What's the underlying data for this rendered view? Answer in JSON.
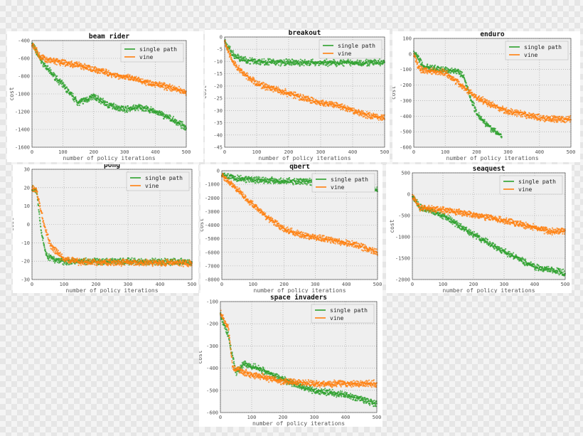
{
  "chart_data": [
    {
      "type": "scatter",
      "title": "beam rider",
      "xlabel": "number of policy iterations",
      "ylabel": "cost",
      "xlim": [
        0,
        500
      ],
      "ylim": [
        -1600,
        -400
      ],
      "xticks": [
        0,
        100,
        200,
        300,
        400,
        500
      ],
      "yticks": [
        -1600,
        -1400,
        -1200,
        -1000,
        -800,
        -600,
        -400
      ],
      "grid": true,
      "legend": "top-right",
      "series": [
        {
          "name": "single path",
          "color": "#2ca02c",
          "points": [
            [
              0,
              -430
            ],
            [
              25,
              -600
            ],
            [
              50,
              -720
            ],
            [
              100,
              -900
            ],
            [
              150,
              -1100
            ],
            [
              200,
              -1030
            ],
            [
              250,
              -1130
            ],
            [
              300,
              -1170
            ],
            [
              350,
              -1150
            ],
            [
              400,
              -1200
            ],
            [
              450,
              -1280
            ],
            [
              500,
              -1380
            ]
          ]
        },
        {
          "name": "vine",
          "color": "#ff7f0e",
          "points": [
            [
              0,
              -430
            ],
            [
              25,
              -580
            ],
            [
              50,
              -620
            ],
            [
              100,
              -650
            ],
            [
              150,
              -680
            ],
            [
              200,
              -720
            ],
            [
              250,
              -770
            ],
            [
              300,
              -810
            ],
            [
              350,
              -850
            ],
            [
              400,
              -890
            ],
            [
              450,
              -930
            ],
            [
              500,
              -980
            ]
          ]
        }
      ]
    },
    {
      "type": "scatter",
      "title": "breakout",
      "xlabel": "number of policy iterations",
      "ylabel": "cost",
      "xlim": [
        0,
        500
      ],
      "ylim": [
        -45,
        0
      ],
      "xticks": [
        0,
        100,
        200,
        300,
        400,
        500
      ],
      "yticks": [
        -45,
        -40,
        -35,
        -30,
        -25,
        -20,
        -15,
        -10,
        -5,
        0
      ],
      "grid": true,
      "legend": "top-right",
      "series": [
        {
          "name": "single path",
          "color": "#2ca02c",
          "points": [
            [
              0,
              -2
            ],
            [
              25,
              -7
            ],
            [
              50,
              -9
            ],
            [
              100,
              -10
            ],
            [
              200,
              -10.5
            ],
            [
              500,
              -10.5
            ]
          ]
        },
        {
          "name": "vine",
          "color": "#ff7f0e",
          "points": [
            [
              0,
              -2
            ],
            [
              25,
              -10
            ],
            [
              50,
              -14
            ],
            [
              100,
              -19
            ],
            [
              150,
              -21
            ],
            [
              200,
              -23
            ],
            [
              250,
              -25
            ],
            [
              300,
              -27
            ],
            [
              350,
              -28
            ],
            [
              400,
              -30
            ],
            [
              450,
              -32
            ],
            [
              500,
              -33
            ]
          ]
        }
      ]
    },
    {
      "type": "scatter",
      "title": "enduro",
      "xlabel": "number of policy iterations",
      "ylabel": "cost",
      "xlim": [
        0,
        500
      ],
      "ylim": [
        -600,
        100
      ],
      "xticks": [
        0,
        100,
        200,
        300,
        400,
        500
      ],
      "yticks": [
        -600,
        -500,
        -400,
        -300,
        -200,
        -100,
        0,
        100
      ],
      "grid": true,
      "legend": "top-right",
      "series": [
        {
          "name": "single path",
          "color": "#2ca02c",
          "points": [
            [
              0,
              0
            ],
            [
              10,
              -10
            ],
            [
              30,
              -80
            ],
            [
              80,
              -100
            ],
            [
              140,
              -110
            ],
            [
              160,
              -150
            ],
            [
              180,
              -280
            ],
            [
              200,
              -380
            ],
            [
              240,
              -470
            ],
            [
              280,
              -530
            ]
          ]
        },
        {
          "name": "vine",
          "color": "#ff7f0e",
          "points": [
            [
              0,
              0
            ],
            [
              10,
              -60
            ],
            [
              20,
              -100
            ],
            [
              100,
              -120
            ],
            [
              150,
              -200
            ],
            [
              200,
              -280
            ],
            [
              250,
              -330
            ],
            [
              300,
              -370
            ],
            [
              350,
              -390
            ],
            [
              400,
              -410
            ],
            [
              450,
              -420
            ],
            [
              500,
              -420
            ]
          ]
        }
      ]
    },
    {
      "type": "scatter",
      "title": "pong",
      "xlabel": "number of policy iterations",
      "ylabel": "cost",
      "xlim": [
        0,
        500
      ],
      "ylim": [
        -30,
        30
      ],
      "xticks": [
        0,
        100,
        200,
        300,
        400,
        500
      ],
      "yticks": [
        -30,
        -20,
        -10,
        0,
        10,
        20,
        30
      ],
      "grid": true,
      "legend": "top-right",
      "series": [
        {
          "name": "single path",
          "color": "#2ca02c",
          "points": [
            [
              0,
              20
            ],
            [
              15,
              18
            ],
            [
              30,
              -5
            ],
            [
              45,
              -17
            ],
            [
              70,
              -19
            ],
            [
              100,
              -20
            ],
            [
              500,
              -20.5
            ]
          ]
        },
        {
          "name": "vine",
          "color": "#ff7f0e",
          "points": [
            [
              0,
              20
            ],
            [
              15,
              18
            ],
            [
              40,
              -2
            ],
            [
              60,
              -12
            ],
            [
              100,
              -19
            ],
            [
              150,
              -20.5
            ],
            [
              500,
              -21
            ]
          ]
        }
      ]
    },
    {
      "type": "scatter",
      "title": "qbert",
      "xlabel": "number of policy iterations",
      "ylabel": "cost",
      "xlim": [
        0,
        500
      ],
      "ylim": [
        -8000,
        0
      ],
      "xticks": [
        0,
        100,
        200,
        300,
        400,
        500
      ],
      "yticks": [
        -8000,
        -7000,
        -6000,
        -5000,
        -4000,
        -3000,
        -2000,
        -1000,
        0
      ],
      "grid": true,
      "legend": "top-right",
      "series": [
        {
          "name": "single path",
          "color": "#2ca02c",
          "points": [
            [
              0,
              -300
            ],
            [
              50,
              -550
            ],
            [
              100,
              -650
            ],
            [
              200,
              -750
            ],
            [
              300,
              -850
            ],
            [
              400,
              -900
            ],
            [
              450,
              -1000
            ],
            [
              500,
              -1400
            ]
          ]
        },
        {
          "name": "vine",
          "color": "#ff7f0e",
          "points": [
            [
              0,
              -300
            ],
            [
              50,
              -1400
            ],
            [
              100,
              -2500
            ],
            [
              150,
              -3500
            ],
            [
              200,
              -4300
            ],
            [
              250,
              -4700
            ],
            [
              300,
              -4900
            ],
            [
              350,
              -5100
            ],
            [
              400,
              -5300
            ],
            [
              450,
              -5600
            ],
            [
              500,
              -6000
            ]
          ]
        }
      ]
    },
    {
      "type": "scatter",
      "title": "seaquest",
      "xlabel": "number of policy iterations",
      "ylabel": "cost",
      "xlim": [
        0,
        500
      ],
      "ylim": [
        -2000,
        500
      ],
      "xticks": [
        0,
        100,
        200,
        300,
        400,
        500
      ],
      "yticks": [
        -2000,
        -1500,
        -1000,
        -500,
        0,
        500
      ],
      "grid": true,
      "legend": "top-right",
      "series": [
        {
          "name": "single path",
          "color": "#2ca02c",
          "points": [
            [
              0,
              -50
            ],
            [
              25,
              -300
            ],
            [
              100,
              -500
            ],
            [
              200,
              -950
            ],
            [
              300,
              -1350
            ],
            [
              400,
              -1700
            ],
            [
              500,
              -1850
            ]
          ]
        },
        {
          "name": "vine",
          "color": "#ff7f0e",
          "points": [
            [
              0,
              -50
            ],
            [
              25,
              -320
            ],
            [
              100,
              -370
            ],
            [
              200,
              -480
            ],
            [
              300,
              -620
            ],
            [
              400,
              -780
            ],
            [
              450,
              -880
            ],
            [
              500,
              -850
            ]
          ]
        }
      ]
    },
    {
      "type": "scatter",
      "title": "space invaders",
      "xlabel": "number of policy iterations",
      "ylabel": "cost",
      "xlim": [
        0,
        500
      ],
      "ylim": [
        -600,
        -100
      ],
      "xticks": [
        0,
        100,
        200,
        300,
        400,
        500
      ],
      "yticks": [
        -600,
        -500,
        -400,
        -300,
        -200,
        -100
      ],
      "grid": true,
      "legend": "top-right",
      "series": [
        {
          "name": "single path",
          "color": "#2ca02c",
          "points": [
            [
              0,
              -160
            ],
            [
              25,
              -250
            ],
            [
              50,
              -420
            ],
            [
              75,
              -380
            ],
            [
              100,
              -390
            ],
            [
              150,
              -420
            ],
            [
              200,
              -450
            ],
            [
              250,
              -480
            ],
            [
              300,
              -500
            ],
            [
              350,
              -510
            ],
            [
              400,
              -520
            ],
            [
              450,
              -540
            ],
            [
              500,
              -560
            ]
          ]
        },
        {
          "name": "vine",
          "color": "#ff7f0e",
          "points": [
            [
              0,
              -150
            ],
            [
              25,
              -220
            ],
            [
              40,
              -400
            ],
            [
              100,
              -430
            ],
            [
              200,
              -460
            ],
            [
              300,
              -470
            ],
            [
              400,
              -470
            ],
            [
              500,
              -470
            ]
          ]
        }
      ]
    }
  ]
}
